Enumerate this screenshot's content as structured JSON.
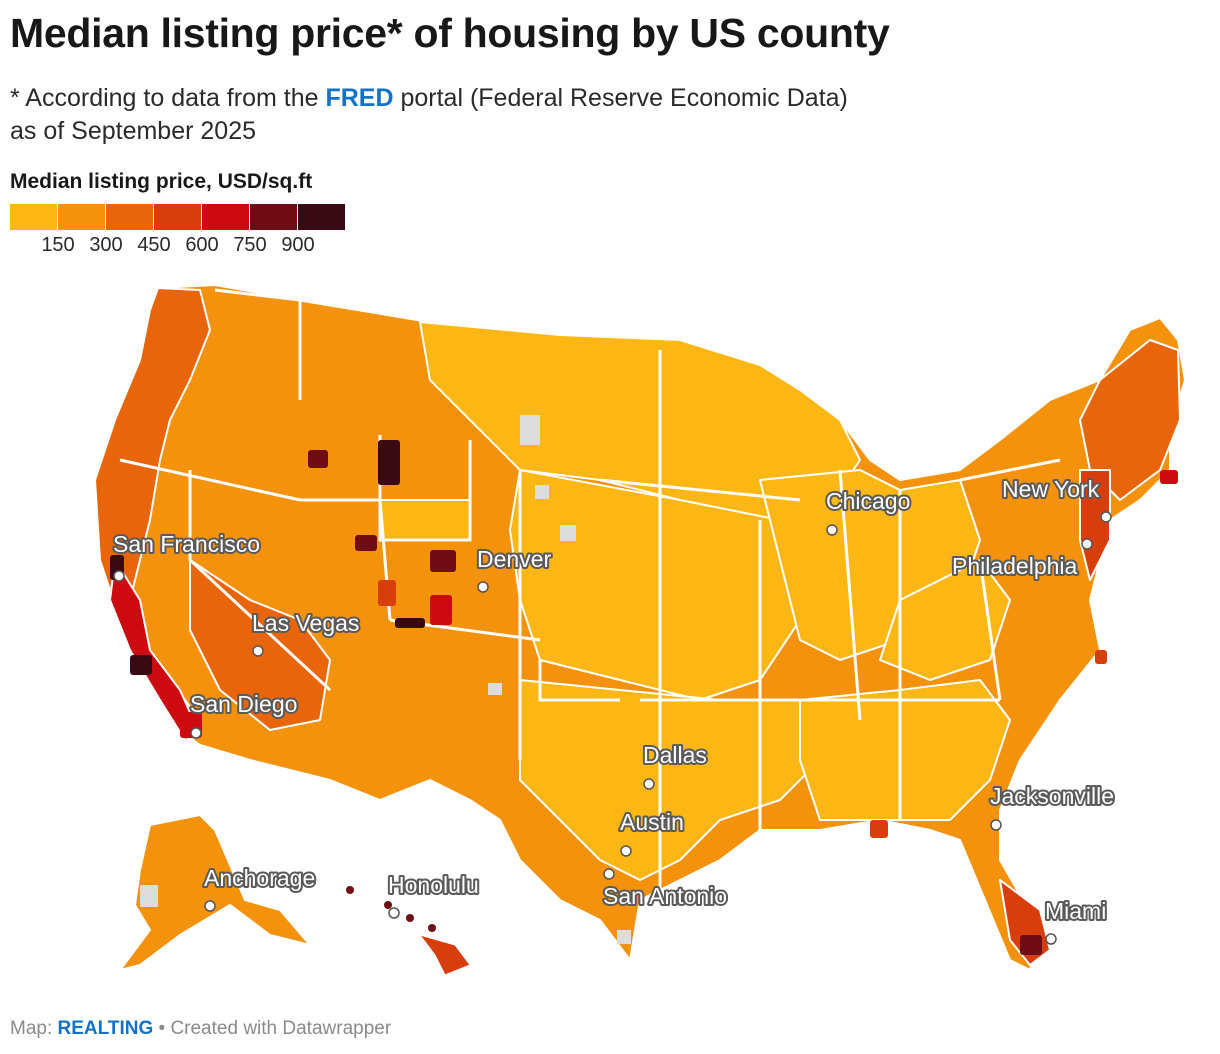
{
  "header": {
    "title": "Median listing price* of housing by US county",
    "subtitle_prefix": "* According to data from the ",
    "subtitle_link": "FRED",
    "subtitle_suffix": " portal (Federal Reserve Economic Data)",
    "subtitle_line2": "as of September 2025"
  },
  "legend": {
    "title": "Median listing price, USD/sq.ft",
    "colors": [
      "#fdb714",
      "#f4920c",
      "#e8650a",
      "#d83d0c",
      "#cc0a10",
      "#6e0d13",
      "#3a0a14"
    ],
    "ticks": [
      "150",
      "300",
      "450",
      "600",
      "750",
      "900"
    ]
  },
  "map": {
    "colors": {
      "no_data": "#dcdcdc",
      "border": "#ffffff",
      "base": "#f4920c",
      "low": "#fdb714",
      "mid": "#e8650a",
      "high": "#d83d0c",
      "very_high": "#cc0a10",
      "extreme": "#6e0d13",
      "top": "#3a0a14"
    },
    "cities": [
      {
        "name": "San Francisco"
      },
      {
        "name": "Las Vegas"
      },
      {
        "name": "San Diego"
      },
      {
        "name": "Denver"
      },
      {
        "name": "Dallas"
      },
      {
        "name": "Austin"
      },
      {
        "name": "San Antonio"
      },
      {
        "name": "Chicago"
      },
      {
        "name": "New York"
      },
      {
        "name": "Philadelphia"
      },
      {
        "name": "Jacksonville"
      },
      {
        "name": "Miami"
      },
      {
        "name": "Anchorage"
      },
      {
        "name": "Honolulu"
      }
    ]
  },
  "footer": {
    "prefix": "Map: ",
    "brand": "REALTING",
    "suffix": " • Created with Datawrapper"
  }
}
